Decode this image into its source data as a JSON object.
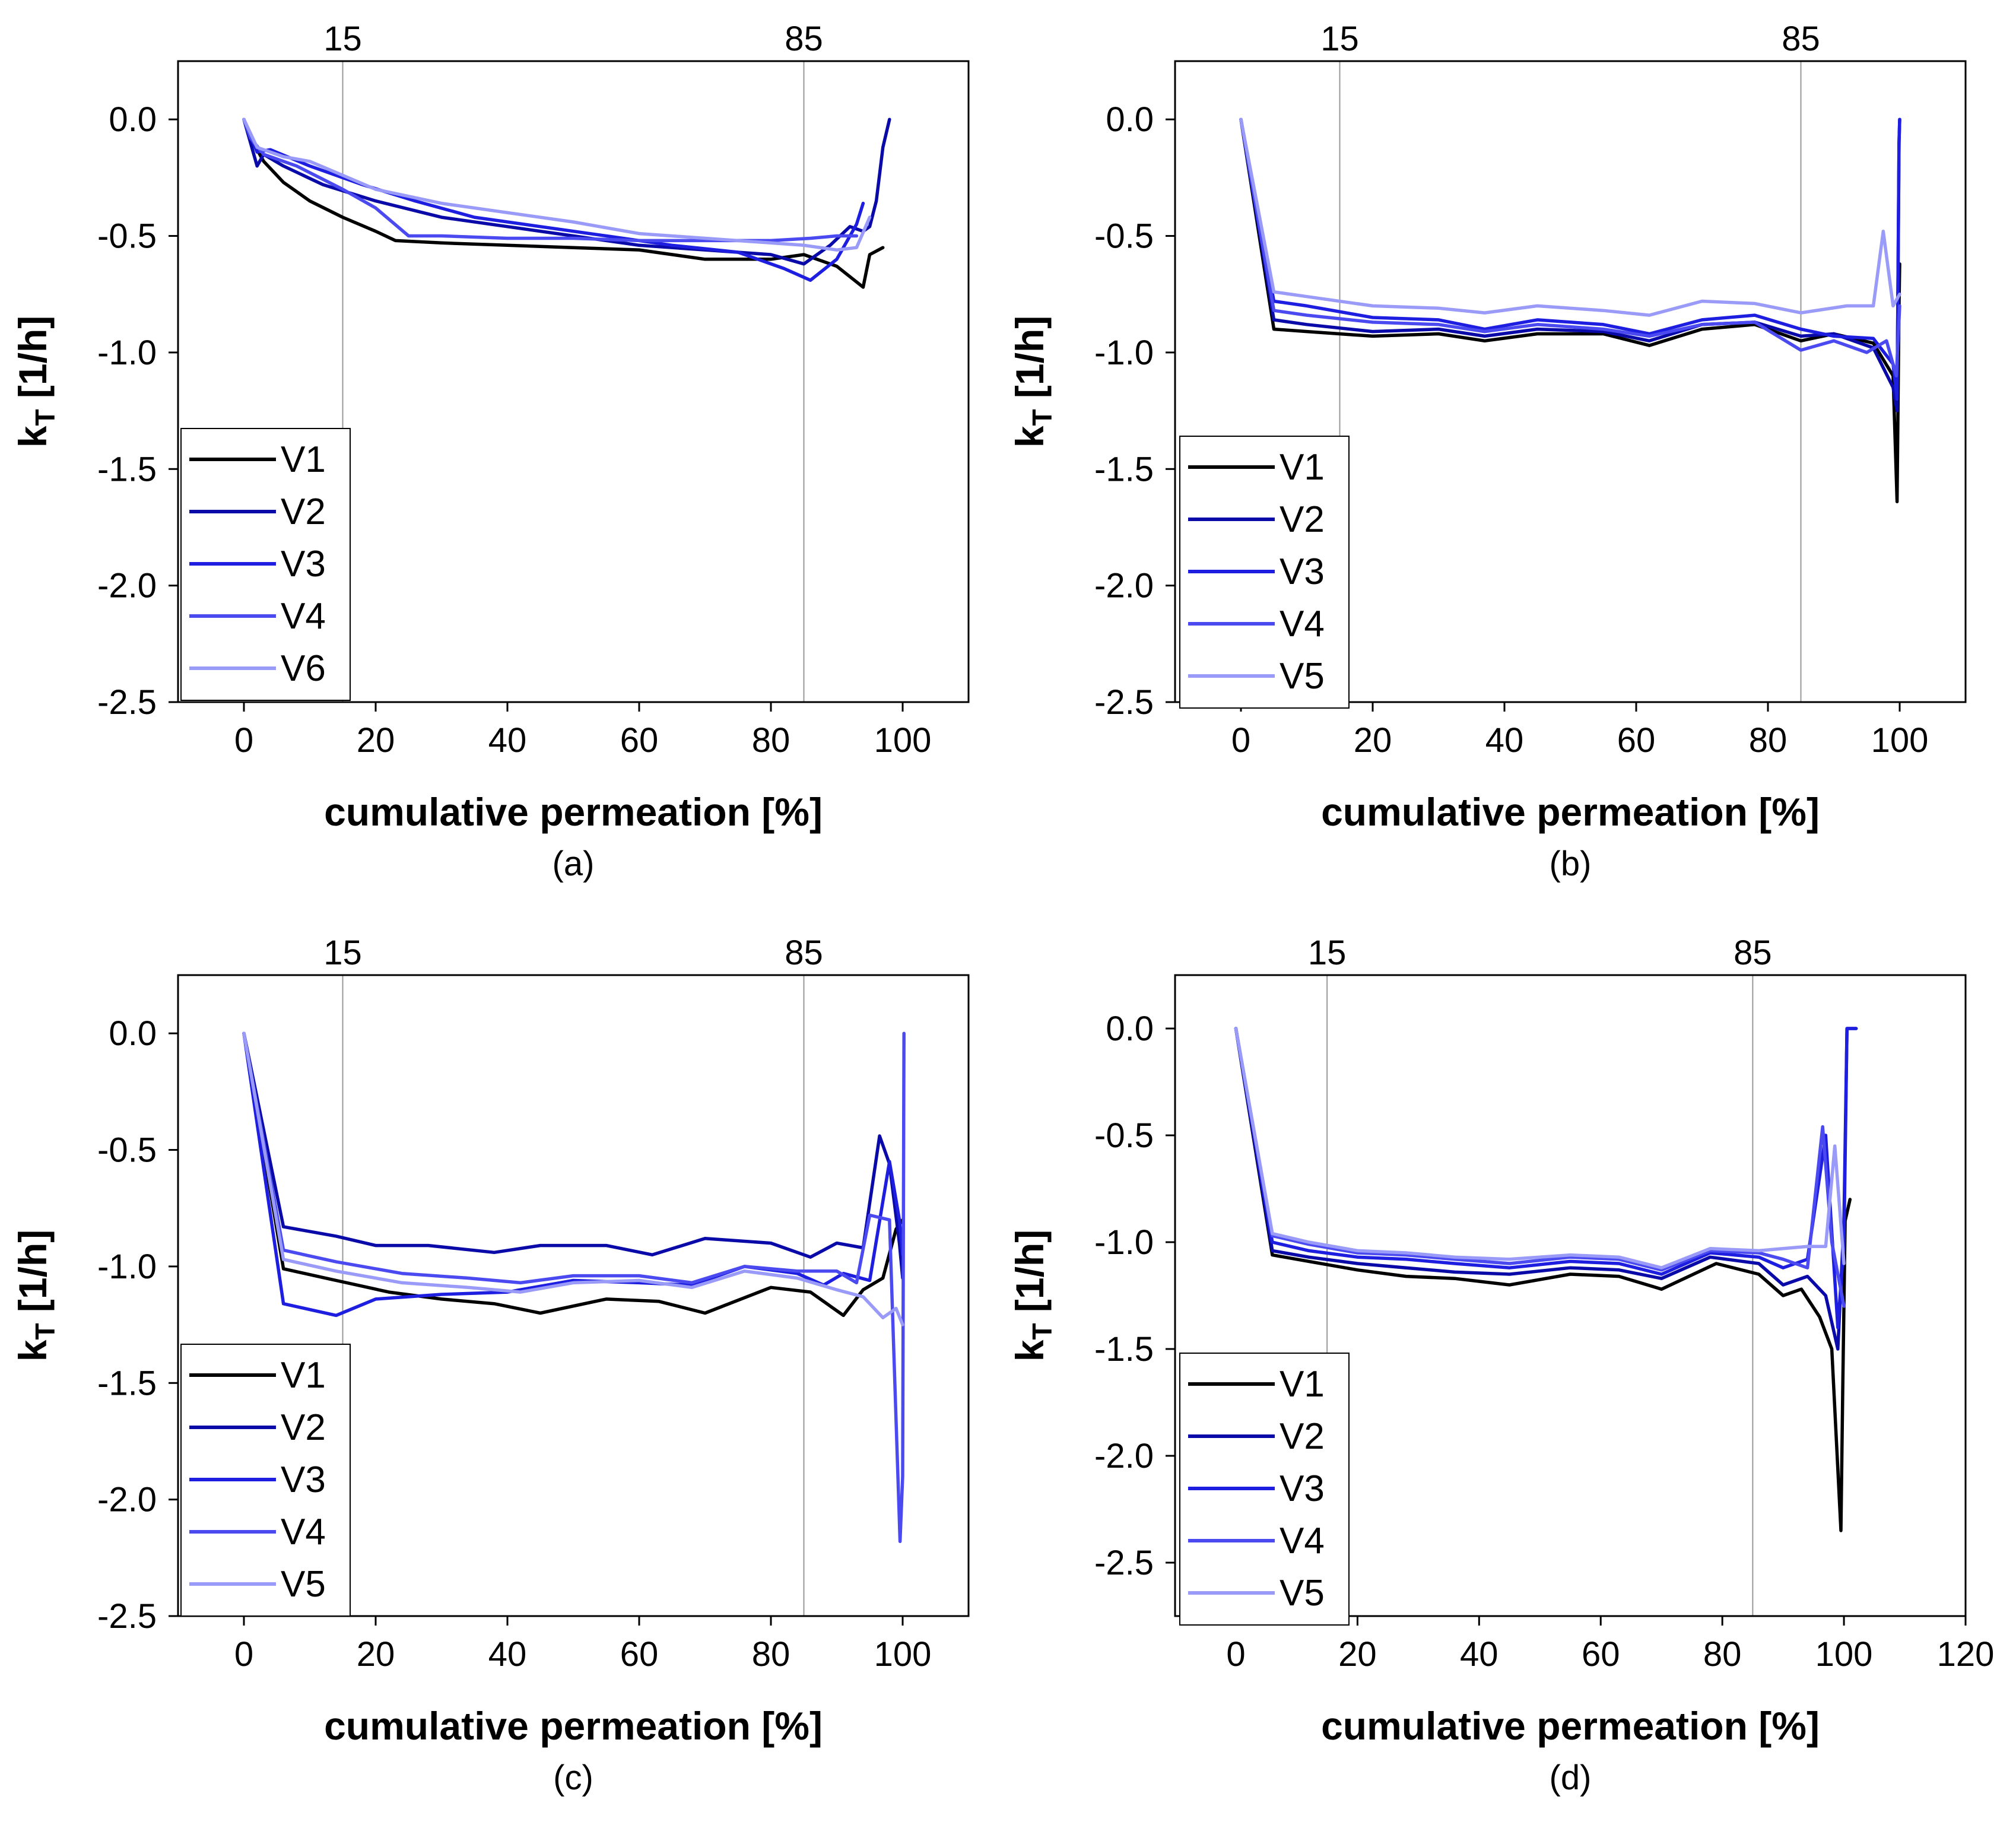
{
  "figure": {
    "description_free": true,
    "colors": {
      "V1": "#000000",
      "V2": "#0a0aa8",
      "V3": "#1e1ee0",
      "V4": "#4a4af0",
      "V5": "#9a9af8",
      "V6": "#9a9af8",
      "reference_line": "#999999",
      "frame": "#000000"
    }
  },
  "chart_data": [
    {
      "type": "line",
      "panel_label": "(a)",
      "xlabel": "cumulative permeation [%]",
      "ylabel_main": "k",
      "ylabel_sub": "T",
      "ylabel_unit": " [1/h]",
      "xlim": [
        -10,
        110
      ],
      "ylim": [
        -2.5,
        0.25
      ],
      "xticks": [
        0,
        20,
        40,
        60,
        80,
        100
      ],
      "yticks": [
        0.0,
        -0.5,
        -1.0,
        -1.5,
        -2.0,
        -2.5
      ],
      "ytick_labels": [
        "0.0",
        "-0.5",
        "-1.0",
        "-1.5",
        "-2.0",
        "-2.5"
      ],
      "top_ticks": [
        {
          "value": 15,
          "label": "15"
        },
        {
          "value": 85,
          "label": "85"
        }
      ],
      "legend": [
        "V1",
        "V2",
        "V3",
        "V4",
        "V6"
      ],
      "series": [
        {
          "name": "V1",
          "x": [
            0,
            1,
            3,
            6,
            10,
            15,
            20,
            23,
            30,
            40,
            50,
            60,
            70,
            80,
            85,
            90,
            94,
            95,
            97
          ],
          "y": [
            0,
            -0.08,
            -0.18,
            -0.27,
            -0.35,
            -0.42,
            -0.48,
            -0.52,
            -0.53,
            -0.54,
            -0.55,
            -0.56,
            -0.6,
            -0.6,
            -0.58,
            -0.63,
            -0.72,
            -0.58,
            -0.55
          ]
        },
        {
          "name": "V2",
          "x": [
            0,
            1,
            2,
            3,
            6,
            12,
            20,
            30,
            40,
            50,
            60,
            70,
            80,
            85,
            89,
            92,
            94,
            95,
            96,
            97,
            98
          ],
          "y": [
            0,
            -0.1,
            -0.2,
            -0.15,
            -0.2,
            -0.28,
            -0.35,
            -0.42,
            -0.46,
            -0.5,
            -0.54,
            -0.56,
            -0.58,
            -0.62,
            -0.54,
            -0.46,
            -0.48,
            -0.46,
            -0.35,
            -0.12,
            0
          ]
        },
        {
          "name": "V3",
          "x": [
            0,
            2,
            4,
            10,
            18,
            26,
            35,
            45,
            55,
            65,
            75,
            82,
            86,
            90,
            93,
            94
          ],
          "y": [
            0,
            -0.14,
            -0.13,
            -0.2,
            -0.28,
            -0.35,
            -0.42,
            -0.46,
            -0.5,
            -0.54,
            -0.57,
            -0.64,
            -0.69,
            -0.6,
            -0.45,
            -0.36
          ]
        },
        {
          "name": "V4",
          "x": [
            0,
            1,
            3,
            8,
            15,
            20,
            25,
            30,
            40,
            50,
            60,
            70,
            80,
            86,
            90,
            93
          ],
          "y": [
            0,
            -0.08,
            -0.15,
            -0.2,
            -0.3,
            -0.38,
            -0.5,
            -0.5,
            -0.51,
            -0.51,
            -0.52,
            -0.52,
            -0.52,
            -0.51,
            -0.5,
            -0.5
          ]
        },
        {
          "name": "V6",
          "x": [
            0,
            2,
            6,
            10,
            15,
            20,
            30,
            40,
            50,
            60,
            70,
            80,
            85,
            90,
            93,
            95
          ],
          "y": [
            0,
            -0.12,
            -0.16,
            -0.18,
            -0.24,
            -0.3,
            -0.36,
            -0.4,
            -0.44,
            -0.49,
            -0.51,
            -0.53,
            -0.54,
            -0.56,
            -0.55,
            -0.42
          ]
        }
      ]
    },
    {
      "type": "line",
      "panel_label": "(b)",
      "xlabel": "cumulative permeation [%]",
      "ylabel_main": "k",
      "ylabel_sub": "T",
      "ylabel_unit": " [1/h]",
      "xlim": [
        -10,
        110
      ],
      "ylim": [
        -2.5,
        0.25
      ],
      "xticks": [
        0,
        20,
        40,
        60,
        80,
        100
      ],
      "yticks": [
        0.0,
        -0.5,
        -1.0,
        -1.5,
        -2.0,
        -2.5
      ],
      "ytick_labels": [
        "0.0",
        "-0.5",
        "-1.0",
        "-1.5",
        "-2.0",
        "-2.5"
      ],
      "top_ticks": [
        {
          "value": 15,
          "label": "15"
        },
        {
          "value": 85,
          "label": "85"
        }
      ],
      "legend": [
        "V1",
        "V2",
        "V3",
        "V4",
        "V5"
      ],
      "series": [
        {
          "name": "V1",
          "x": [
            0,
            5,
            10,
            20,
            30,
            37,
            45,
            55,
            62,
            70,
            78,
            85,
            90,
            96,
            99,
            99.6,
            99.9,
            100
          ],
          "y": [
            0,
            -0.9,
            -0.91,
            -0.93,
            -0.92,
            -0.95,
            -0.92,
            -0.92,
            -0.97,
            -0.9,
            -0.88,
            -0.95,
            -0.92,
            -0.96,
            -1.1,
            -1.64,
            -0.8,
            -0.62
          ]
        },
        {
          "name": "V2",
          "x": [
            0,
            5,
            10,
            20,
            30,
            37,
            45,
            55,
            62,
            70,
            78,
            85,
            90,
            96,
            99,
            99.6,
            99.9,
            100
          ],
          "y": [
            0,
            -0.86,
            -0.88,
            -0.91,
            -0.9,
            -0.93,
            -0.9,
            -0.91,
            -0.95,
            -0.88,
            -0.87,
            -0.93,
            -0.92,
            -0.98,
            -1.15,
            -1.25,
            -0.1,
            0
          ]
        },
        {
          "name": "V3",
          "x": [
            0,
            5,
            10,
            20,
            30,
            37,
            45,
            55,
            62,
            70,
            78,
            85,
            90,
            96,
            99,
            99.6,
            99.9,
            100
          ],
          "y": [
            0,
            -0.78,
            -0.8,
            -0.85,
            -0.86,
            -0.9,
            -0.86,
            -0.88,
            -0.92,
            -0.86,
            -0.84,
            -0.9,
            -0.93,
            -0.94,
            -1.05,
            -1.2,
            -0.1,
            0
          ]
        },
        {
          "name": "V4",
          "x": [
            0,
            5,
            10,
            20,
            30,
            37,
            45,
            55,
            62,
            70,
            78,
            85,
            90,
            95,
            98,
            99.5,
            100
          ],
          "y": [
            0,
            -0.82,
            -0.84,
            -0.87,
            -0.88,
            -0.91,
            -0.88,
            -0.9,
            -0.93,
            -0.88,
            -0.87,
            -0.99,
            -0.95,
            -1.0,
            -0.95,
            -1.1,
            -0.8
          ]
        },
        {
          "name": "V5",
          "x": [
            0,
            5,
            10,
            20,
            30,
            37,
            45,
            55,
            62,
            70,
            78,
            85,
            92,
            96,
            97.5,
            99,
            100
          ],
          "y": [
            0,
            -0.74,
            -0.76,
            -0.8,
            -0.81,
            -0.83,
            -0.8,
            -0.82,
            -0.84,
            -0.78,
            -0.79,
            -0.83,
            -0.8,
            -0.8,
            -0.48,
            -0.8,
            -0.75
          ]
        }
      ]
    },
    {
      "type": "line",
      "panel_label": "(c)",
      "xlabel": "cumulative permeation [%]",
      "ylabel_main": "k",
      "ylabel_sub": "T",
      "ylabel_unit": " [1/h]",
      "xlim": [
        -10,
        110
      ],
      "ylim": [
        -2.5,
        0.25
      ],
      "xticks": [
        0,
        20,
        40,
        60,
        80,
        100
      ],
      "yticks": [
        0.0,
        -0.5,
        -1.0,
        -1.5,
        -2.0,
        -2.5
      ],
      "ytick_labels": [
        "0.0",
        "-0.5",
        "-1.0",
        "-1.5",
        "-2.0",
        "-2.5"
      ],
      "top_ticks": [
        {
          "value": 15,
          "label": "15"
        },
        {
          "value": 85,
          "label": "85"
        }
      ],
      "legend": [
        "V1",
        "V2",
        "V3",
        "V4",
        "V5"
      ],
      "series": [
        {
          "name": "V1",
          "x": [
            0,
            6,
            14,
            22,
            30,
            38,
            45,
            55,
            63,
            70,
            80,
            86,
            91,
            94,
            97,
            99,
            100
          ],
          "y": [
            0,
            -1.01,
            -1.06,
            -1.11,
            -1.14,
            -1.16,
            -1.2,
            -1.14,
            -1.15,
            -1.2,
            -1.09,
            -1.11,
            -1.21,
            -1.1,
            -1.05,
            -0.84,
            -0.8
          ]
        },
        {
          "name": "V2",
          "x": [
            0,
            6,
            14,
            20,
            28,
            38,
            45,
            55,
            62,
            70,
            80,
            86,
            90,
            94,
            96.5,
            98,
            99.5,
            100
          ],
          "y": [
            0,
            -0.83,
            -0.87,
            -0.91,
            -0.91,
            -0.94,
            -0.91,
            -0.91,
            -0.95,
            -0.88,
            -0.9,
            -0.96,
            -0.9,
            -0.92,
            -0.44,
            -0.56,
            -0.9,
            -1.05
          ]
        },
        {
          "name": "V3",
          "x": [
            0,
            6,
            14,
            20,
            30,
            40,
            50,
            60,
            68,
            76,
            84,
            88,
            91,
            95,
            98,
            99.5,
            100
          ],
          "y": [
            0,
            -1.16,
            -1.21,
            -1.14,
            -1.12,
            -1.11,
            -1.06,
            -1.07,
            -1.08,
            -1.0,
            -1.03,
            -1.08,
            -1.03,
            -1.06,
            -0.55,
            -0.8,
            -0.95
          ]
        },
        {
          "name": "V4",
          "x": [
            0,
            6,
            14,
            24,
            34,
            42,
            50,
            60,
            68,
            76,
            84,
            90,
            93,
            95,
            98,
            99.6,
            100,
            100.2
          ],
          "y": [
            0,
            -0.93,
            -0.98,
            -1.03,
            -1.05,
            -1.07,
            -1.04,
            -1.04,
            -1.07,
            -1.0,
            -1.02,
            -1.02,
            -1.07,
            -0.78,
            -0.8,
            -2.18,
            -1.9,
            0
          ]
        },
        {
          "name": "V5",
          "x": [
            0,
            6,
            14,
            24,
            34,
            42,
            50,
            60,
            68,
            76,
            84,
            90,
            94,
            97,
            99,
            100
          ],
          "y": [
            0,
            -0.97,
            -1.02,
            -1.07,
            -1.09,
            -1.11,
            -1.07,
            -1.06,
            -1.09,
            -1.02,
            -1.05,
            -1.1,
            -1.13,
            -1.22,
            -1.18,
            -1.25
          ]
        }
      ]
    },
    {
      "type": "line",
      "panel_label": "(d)",
      "xlabel": "cumulative permeation [%]",
      "ylabel_main": "k",
      "ylabel_sub": "T",
      "ylabel_unit": " [1/h]",
      "xlim": [
        -10,
        120
      ],
      "ylim": [
        -2.75,
        0.25
      ],
      "xticks": [
        0,
        20,
        40,
        60,
        80,
        100,
        120
      ],
      "yticks": [
        0.0,
        -0.5,
        -1.0,
        -1.5,
        -2.0,
        -2.5
      ],
      "ytick_labels": [
        "0.0",
        "-0.5",
        "-1.0",
        "-1.5",
        "-2.0",
        "-2.5"
      ],
      "top_ticks": [
        {
          "value": 15,
          "label": "15"
        },
        {
          "value": 85,
          "label": "85"
        }
      ],
      "legend": [
        "V1",
        "V2",
        "V3",
        "V4",
        "V5"
      ],
      "series": [
        {
          "name": "V1",
          "x": [
            0,
            6,
            12,
            20,
            28,
            36,
            45,
            55,
            63,
            70,
            79,
            86,
            90,
            93,
            96,
            98,
            99.5,
            99.8,
            100.2,
            101
          ],
          "y": [
            0,
            -1.06,
            -1.09,
            -1.13,
            -1.16,
            -1.17,
            -1.2,
            -1.15,
            -1.16,
            -1.22,
            -1.1,
            -1.15,
            -1.25,
            -1.22,
            -1.35,
            -1.5,
            -2.35,
            -1.7,
            -0.9,
            -0.8
          ]
        },
        {
          "name": "V2",
          "x": [
            0,
            6,
            12,
            20,
            28,
            36,
            45,
            55,
            63,
            70,
            78,
            86,
            90,
            94,
            97,
            99,
            100,
            100.5,
            102
          ],
          "y": [
            0,
            -1.04,
            -1.07,
            -1.1,
            -1.12,
            -1.14,
            -1.15,
            -1.12,
            -1.13,
            -1.17,
            -1.07,
            -1.1,
            -1.2,
            -1.16,
            -1.25,
            -1.5,
            -0.9,
            0,
            0
          ]
        },
        {
          "name": "V3",
          "x": [
            0,
            6,
            12,
            20,
            28,
            36,
            45,
            55,
            63,
            70,
            78,
            86,
            90,
            94,
            97,
            99,
            100,
            100.5,
            102
          ],
          "y": [
            0,
            -1.0,
            -1.04,
            -1.07,
            -1.08,
            -1.1,
            -1.12,
            -1.09,
            -1.1,
            -1.15,
            -1.05,
            -1.07,
            -1.12,
            -1.08,
            -0.5,
            -1.4,
            -1.0,
            0,
            0
          ]
        },
        {
          "name": "V4",
          "x": [
            0,
            6,
            12,
            20,
            28,
            36,
            45,
            55,
            63,
            70,
            78,
            86,
            90,
            94,
            96.5,
            98,
            100
          ],
          "y": [
            0,
            -0.97,
            -1.01,
            -1.05,
            -1.06,
            -1.08,
            -1.1,
            -1.07,
            -1.08,
            -1.13,
            -1.04,
            -1.05,
            -1.08,
            -1.12,
            -0.46,
            -1.0,
            -1.3
          ]
        },
        {
          "name": "V5",
          "x": [
            0,
            6,
            12,
            20,
            28,
            36,
            45,
            55,
            63,
            70,
            78,
            86,
            90,
            94,
            97,
            98.5,
            100
          ],
          "y": [
            0,
            -0.96,
            -1.0,
            -1.04,
            -1.05,
            -1.07,
            -1.08,
            -1.06,
            -1.07,
            -1.12,
            -1.03,
            -1.04,
            -1.03,
            -1.02,
            -1.02,
            -0.55,
            -1.1
          ]
        }
      ]
    }
  ]
}
